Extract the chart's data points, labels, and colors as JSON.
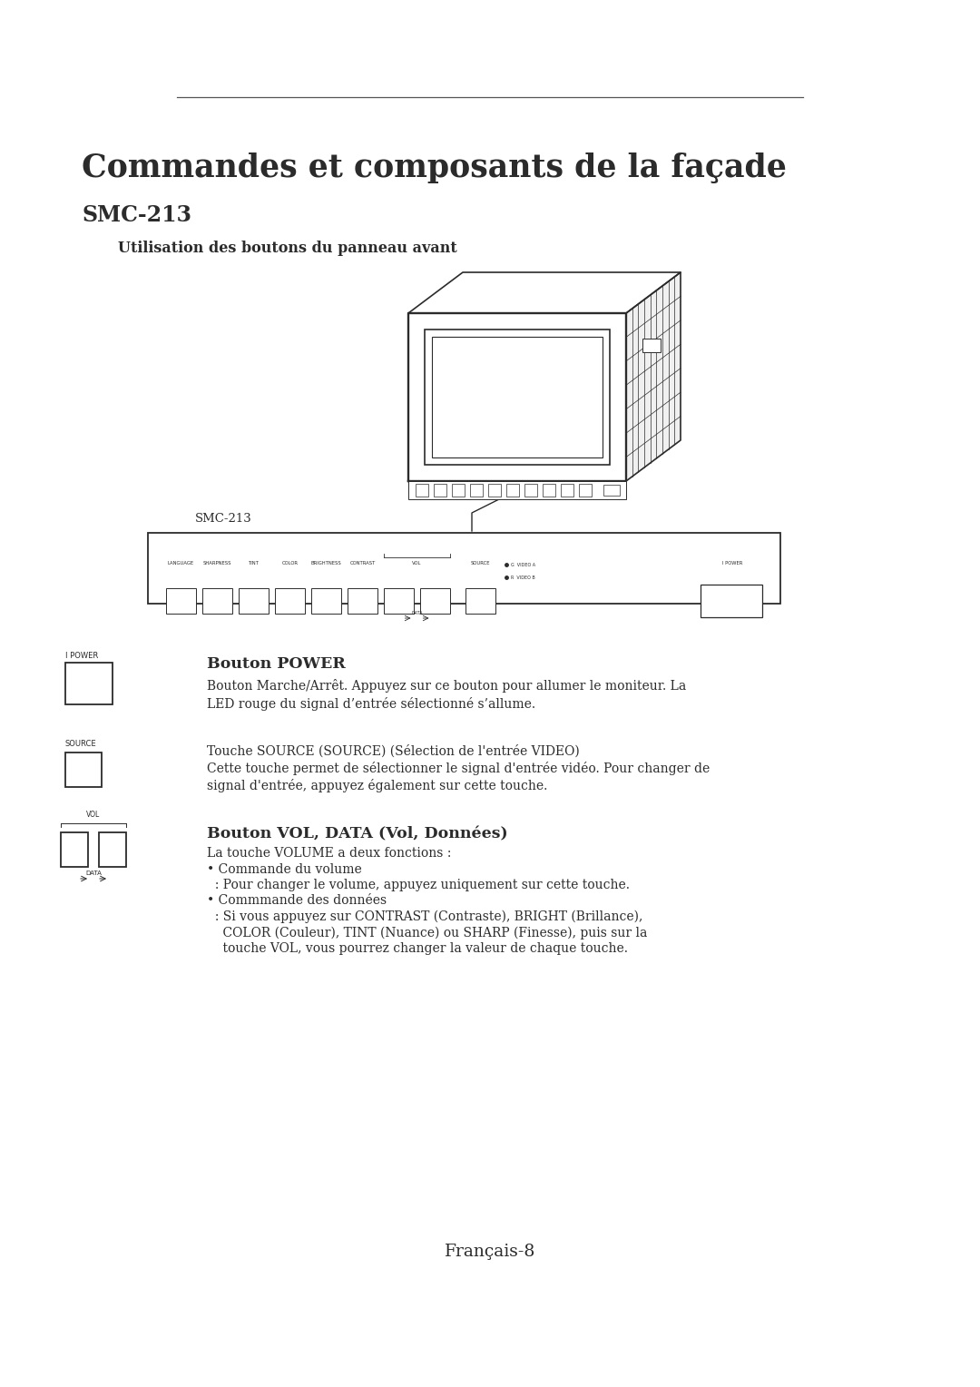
{
  "bg_color": "#ffffff",
  "text_color": "#2b2b2b",
  "title": "Commandes et composants de la façade",
  "subtitle": "SMC-213",
  "subheading": "Utilisation des boutons du panneau avant",
  "smc_label": "SMC-213",
  "page_number": "Français-8",
  "section1_heading": "Bouton POWER",
  "section1_text1": "Bouton Marche/Arrêt. Appuyez sur ce bouton pour allumer le moniteur. La",
  "section1_text2": "LED rouge du signal d’entrée sélectionné s’allume.",
  "section2_text1": "Touche SOURCE (SOURCE) (Sélection de l'entrée VIDEO)",
  "section2_text2": "Cette touche permet de sélectionner le signal d'entrée vidéo. Pour changer de",
  "section2_text3": "signal d'entrée, appuyez également sur cette touche.",
  "section3_heading": "Bouton VOL, DATA (Vol, Données)",
  "section3_text1": "La touche VOLUME a deux fonctions :",
  "section3_bullet1": "• Commande du volume",
  "section3_sub1": "  : Pour changer le volume, appuyez uniquement sur cette touche.",
  "section3_bullet2": "• Commmande des données",
  "section3_sub2": "  : Si vous appuyez sur CONTRAST (Contraste), BRIGHT (Brillance),",
  "section3_sub3": "    COLOR (Couleur), TINT (Nuance) ou SHARP (Finesse), puis sur la",
  "section3_sub4": "    touche VOL, vous pourrez changer la valeur de chaque touche."
}
